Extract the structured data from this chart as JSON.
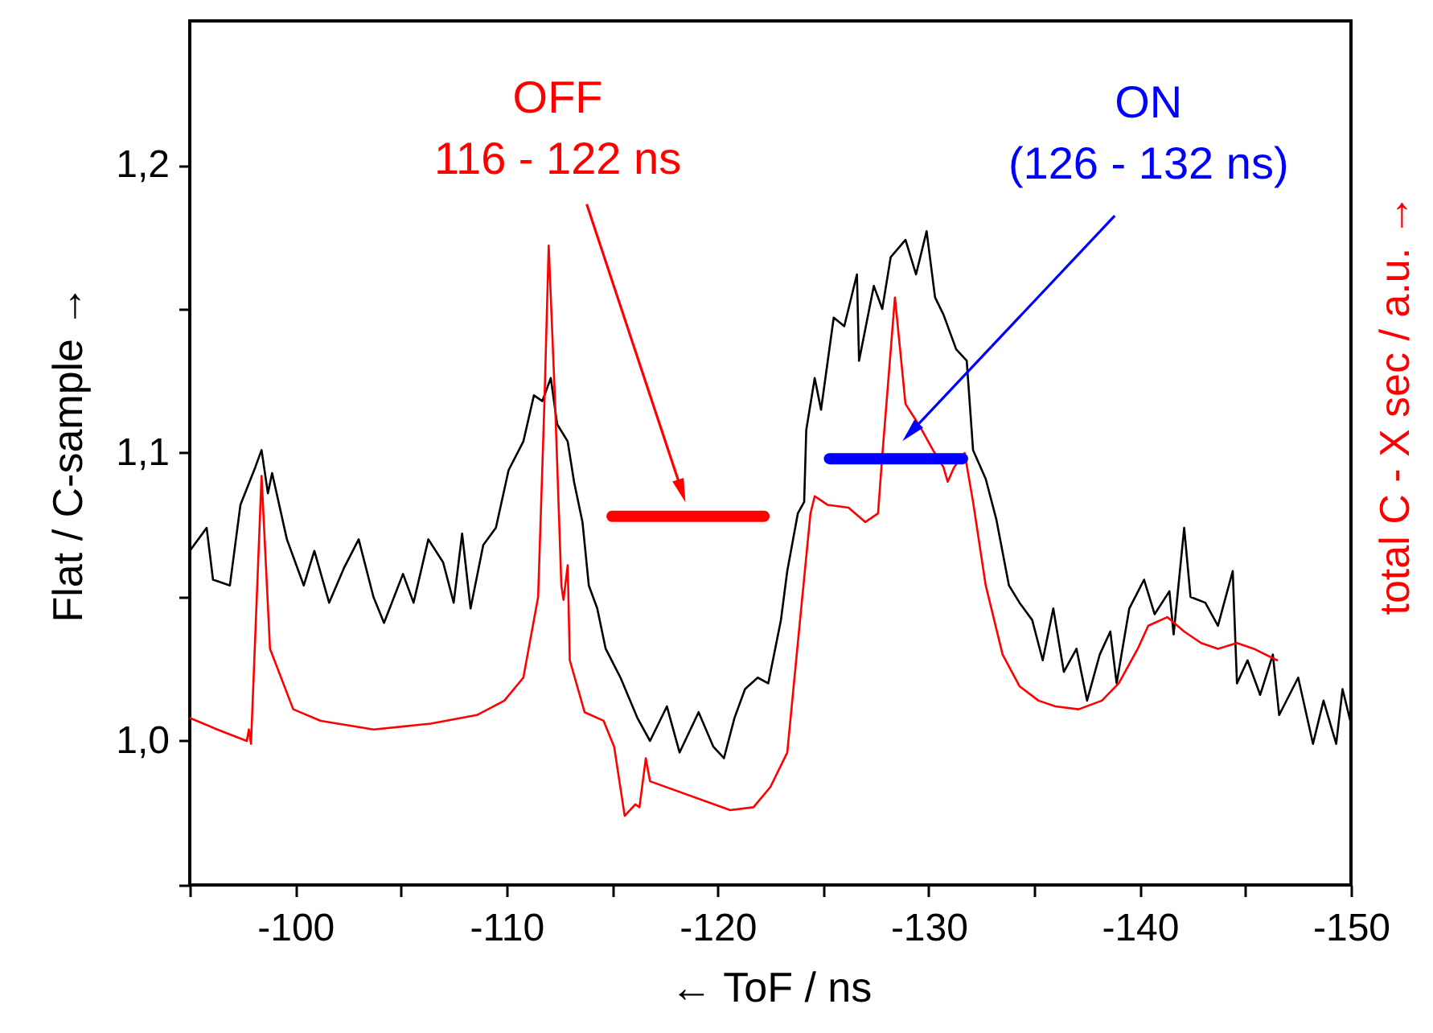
{
  "chart_data": {
    "type": "line",
    "xlabel": "←    ToF /  ns",
    "ylabel": "Flat / C-sample  →",
    "y2label": "total C - X sec / a.u.  →",
    "xlim": [
      -95,
      -150
    ],
    "ylim": [
      0.95,
      1.25
    ],
    "xticks": [
      {
        "value": -95,
        "label": null
      },
      -100,
      {
        "value": -105,
        "label": null
      },
      -110,
      {
        "value": -115,
        "label": null
      },
      -120,
      {
        "value": -125,
        "label": null
      },
      -130,
      {
        "value": -135,
        "label": null
      },
      -140,
      {
        "value": -145,
        "label": null
      },
      -150
    ],
    "yticks": [
      {
        "value": 0.95,
        "label": null
      },
      {
        "value": 1.0,
        "label": "1,0"
      },
      {
        "value": 1.05,
        "label": null
      },
      {
        "value": 1.1,
        "label": "1,1"
      },
      {
        "value": 1.15,
        "label": null
      },
      {
        "value": 1.2,
        "label": "1,2"
      }
    ],
    "series": [
      {
        "color": "#000000",
        "x": [
          -95,
          -95.8,
          -96.1,
          -96.9,
          -97.4,
          -98.1,
          -98.4,
          -98.7,
          -98.9,
          -99.6,
          -100.4,
          -100.9,
          -101.6,
          -102.3,
          -103.0,
          -103.7,
          -104.2,
          -105.1,
          -105.6,
          -106.3,
          -107.0,
          -107.5,
          -107.9,
          -108.3,
          -108.9,
          -109.5,
          -110.1,
          -110.8,
          -111.3,
          -111.7,
          -112.1,
          -112.4,
          -112.9,
          -113.2,
          -113.6,
          -113.9,
          -114.3,
          -114.7,
          -115.4,
          -116.2,
          -116.8,
          -117.6,
          -118.2,
          -119.1,
          -119.8,
          -120.3,
          -120.8,
          -121.3,
          -121.9,
          -122.4,
          -123.0,
          -123.3,
          -123.8,
          -124.1,
          -124.2,
          -124.6,
          -124.9,
          -125.5,
          -126.0,
          -126.6,
          -126.7,
          -127.4,
          -127.8,
          -128.2,
          -128.9,
          -129.4,
          -129.9,
          -130.3,
          -130.7,
          -131.3,
          -131.8,
          -132.1,
          -132.7,
          -133.2,
          -133.8,
          -134.3,
          -134.9,
          -135.4,
          -135.9,
          -136.4,
          -137.0,
          -137.5,
          -138.1,
          -138.6,
          -138.9,
          -139.5,
          -140.2,
          -140.7,
          -141.4,
          -141.6,
          -142.1,
          -142.4,
          -143.1,
          -143.7,
          -144.4,
          -144.6,
          -145.1,
          -145.7,
          -146.3,
          -146.6,
          -147.5,
          -148.2,
          -148.7,
          -149.3,
          -149.6,
          -150
        ],
        "values": [
          1.066,
          1.074,
          1.056,
          1.054,
          1.082,
          1.095,
          1.101,
          1.086,
          1.093,
          1.07,
          1.054,
          1.066,
          1.048,
          1.06,
          1.07,
          1.05,
          1.041,
          1.058,
          1.048,
          1.07,
          1.062,
          1.048,
          1.072,
          1.046,
          1.068,
          1.074,
          1.094,
          1.104,
          1.12,
          1.118,
          1.126,
          1.11,
          1.104,
          1.09,
          1.076,
          1.054,
          1.046,
          1.032,
          1.022,
          1.008,
          1.0,
          1.012,
          0.996,
          1.01,
          0.998,
          0.994,
          1.008,
          1.018,
          1.022,
          1.02,
          1.042,
          1.059,
          1.079,
          1.083,
          1.108,
          1.126,
          1.115,
          1.147,
          1.144,
          1.162,
          1.132,
          1.158,
          1.15,
          1.168,
          1.174,
          1.162,
          1.177,
          1.154,
          1.148,
          1.136,
          1.132,
          1.101,
          1.091,
          1.077,
          1.054,
          1.048,
          1.042,
          1.028,
          1.046,
          1.024,
          1.032,
          1.014,
          1.03,
          1.038,
          1.02,
          1.046,
          1.056,
          1.044,
          1.052,
          1.037,
          1.074,
          1.05,
          1.048,
          1.04,
          1.059,
          1.02,
          1.028,
          1.016,
          1.03,
          1.009,
          1.022,
          0.999,
          1.014,
          0.999,
          1.018,
          1.006
        ]
      },
      {
        "color": "#ff0000",
        "x": [
          -95,
          -96.3,
          -97.7,
          -97.8,
          -97.9,
          -98.4,
          -98.8,
          -99.9,
          -101.2,
          -103.7,
          -106.4,
          -108.6,
          -109.9,
          -110.8,
          -111.5,
          -111.8,
          -112.0,
          -112.3,
          -112.6,
          -112.7,
          -112.9,
          -113.0,
          -113.7,
          -114.6,
          -115.1,
          -115.6,
          -116.1,
          -116.3,
          -116.6,
          -116.8,
          -120.6,
          -121.7,
          -122.5,
          -123.3,
          -123.8,
          -124.4,
          -124.6,
          -125.2,
          -126.2,
          -127.0,
          -127.6,
          -127.8,
          -128.4,
          -128.9,
          -129.6,
          -130.2,
          -130.7,
          -130.9,
          -131.2,
          -131.7,
          -132.1,
          -132.7,
          -133.5,
          -134.3,
          -135.2,
          -136.0,
          -137.1,
          -138.2,
          -139.0,
          -139.9,
          -140.4,
          -141.3,
          -142.1,
          -142.9,
          -143.7,
          -144.6,
          -145.4,
          -146.5
        ],
        "values": [
          1.008,
          1.004,
          1.0,
          1.004,
          0.999,
          1.092,
          1.032,
          1.011,
          1.007,
          1.004,
          1.006,
          1.009,
          1.014,
          1.022,
          1.05,
          1.118,
          1.172,
          1.118,
          1.054,
          1.049,
          1.061,
          1.028,
          1.01,
          1.007,
          0.998,
          0.974,
          0.978,
          0.977,
          0.994,
          0.986,
          0.976,
          0.977,
          0.984,
          0.996,
          1.034,
          1.079,
          1.085,
          1.082,
          1.081,
          1.076,
          1.079,
          1.099,
          1.154,
          1.117,
          1.109,
          1.101,
          1.095,
          1.09,
          1.095,
          1.1,
          1.083,
          1.054,
          1.03,
          1.019,
          1.014,
          1.012,
          1.011,
          1.014,
          1.02,
          1.032,
          1.04,
          1.043,
          1.038,
          1.034,
          1.032,
          1.034,
          1.032,
          1.028
        ]
      },
      {
        "name": "OFF\n116 - 122 ns",
        "color": "#ff0000",
        "x": [
          -115.0,
          -122.2
        ],
        "values": [
          1.078,
          1.078
        ]
      },
      {
        "name": "ON\n(126 - 132 ns)",
        "color": "#0000ff",
        "x": [
          -125.3,
          -131.6
        ],
        "values": [
          1.098,
          1.098
        ]
      }
    ]
  }
}
